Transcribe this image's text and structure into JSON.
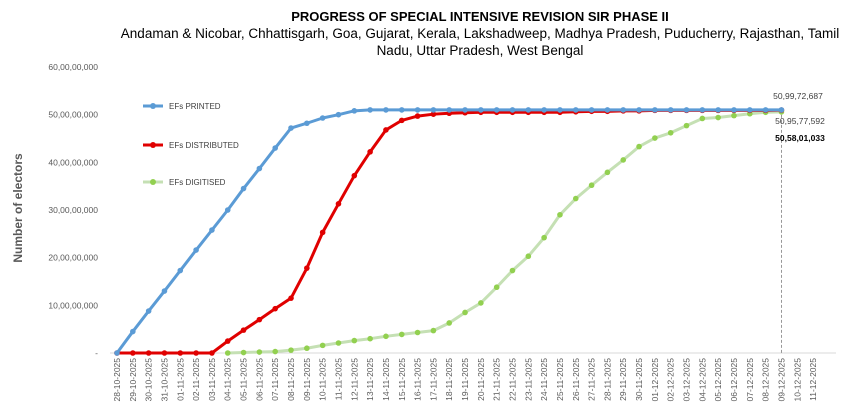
{
  "chart_data": {
    "type": "line",
    "title": "PROGRESS OF SPECIAL INTENSIVE REVISION SIR PHASE II",
    "subtitle": "Andaman & Nicobar, Chhattisgarh, Goa, Gujarat, Kerala, Lakshadweep, Madhya Pradesh, Puducherry, Rajasthan, Tamil Nadu, Uttar Pradesh, West Bengal",
    "ylabel": "Number of electors",
    "xlabel": "",
    "ylim": [
      0,
      60000000
    ],
    "y_ticks": [
      "-",
      "10,00,00,000",
      "20,00,00,000",
      "30,00,00,000",
      "40,00,00,000",
      "50,00,00,000",
      "60,00,00,000"
    ],
    "grid": false,
    "legend_position": "left-inside",
    "categories": [
      "28-10-2025",
      "29-10-2025",
      "30-10-2025",
      "31-10-2025",
      "01-11-2025",
      "02-11-2025",
      "03-11-2025",
      "04-11-2025",
      "05-11-2025",
      "06-11-2025",
      "07-11-2025",
      "08-11-2025",
      "09-11-2025",
      "10-11-2025",
      "11-11-2025",
      "12-11-2025",
      "13-11-2025",
      "14-11-2025",
      "15-11-2025",
      "16-11-2025",
      "17-11-2025",
      "18-11-2025",
      "19-11-2025",
      "20-11-2025",
      "21-11-2025",
      "22-11-2025",
      "23-11-2025",
      "24-11-2025",
      "25-11-2025",
      "26-11-2025",
      "27-11-2025",
      "28-11-2025",
      "29-11-2025",
      "30-11-2025",
      "01-12-2025",
      "02-12-2025",
      "03-12-2025",
      "04-12-2025",
      "05-12-2025",
      "06-12-2025",
      "07-12-2025",
      "08-12-2025",
      "09-12-2025",
      "10-12-2025",
      "11-12-2025"
    ],
    "series": [
      {
        "name": "EFs PRINTED",
        "color": "#5B9BD5",
        "values": [
          0,
          4500000,
          8800000,
          13000000,
          17300000,
          21600000,
          25800000,
          30000000,
          34500000,
          38700000,
          43000000,
          47200000,
          48200000,
          49300000,
          50000000,
          50800000,
          51000000,
          51000000,
          51000000,
          51000000,
          51000000,
          51000000,
          51000000,
          51000000,
          51000000,
          51000000,
          51000000,
          51000000,
          51000000,
          51000000,
          51000000,
          51000000,
          51000000,
          51000000,
          51000000,
          51000000,
          51000000,
          51000000,
          51000000,
          51000000,
          51000000,
          51000000,
          50997268,
          null,
          null
        ]
      },
      {
        "name": "EFs DISTRIBUTED",
        "color": "#E00000",
        "values": [
          0,
          0,
          0,
          0,
          0,
          0,
          0,
          2500000,
          4800000,
          7000000,
          9300000,
          11500000,
          17800000,
          25300000,
          31300000,
          37200000,
          42200000,
          46800000,
          48800000,
          49700000,
          50100000,
          50300000,
          50400000,
          50500000,
          50500000,
          50500000,
          50500000,
          50500000,
          50500000,
          50600000,
          50700000,
          50700000,
          50800000,
          50800000,
          50900000,
          50900000,
          50900000,
          50900000,
          50900000,
          50900000,
          50900000,
          50900000,
          50957759,
          null,
          null
        ]
      },
      {
        "name": "EFs DIGITISED",
        "color": "#C5E0B4",
        "marker_color": "#92D050",
        "values": [
          null,
          null,
          null,
          null,
          null,
          null,
          null,
          0,
          100000,
          200000,
          300000,
          600000,
          1000000,
          1600000,
          2100000,
          2600000,
          3000000,
          3500000,
          3900000,
          4300000,
          4700000,
          6300000,
          8500000,
          10500000,
          13800000,
          17300000,
          20300000,
          24200000,
          29000000,
          32400000,
          35200000,
          37900000,
          40500000,
          43300000,
          45100000,
          46200000,
          47700000,
          49200000,
          49400000,
          49800000,
          50200000,
          50500000,
          50580103,
          null,
          null
        ]
      }
    ],
    "annotations": [
      "50,99,72,687",
      "50,95,77,592",
      "50,58,01,033"
    ]
  }
}
